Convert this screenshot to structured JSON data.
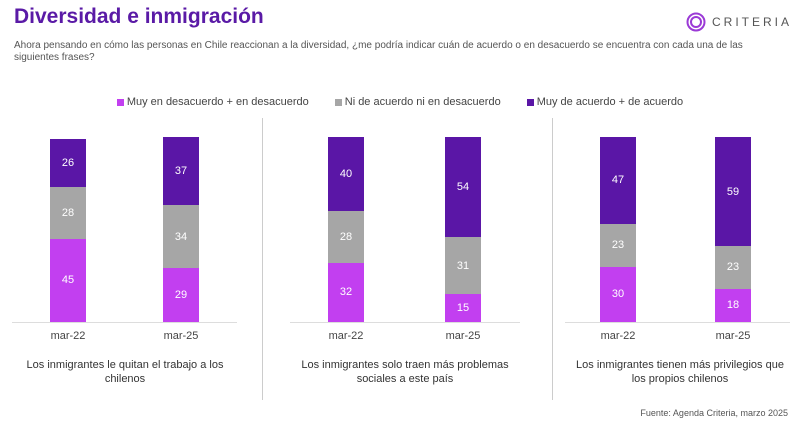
{
  "title": "Diversidad e inmigración",
  "logo": "CRITERIA",
  "subtitle": "Ahora pensando en cómo las personas en Chile reaccionan a la diversidad, ¿me podría indicar cuán de acuerdo o en desacuerdo se encuentra con cada una de las siguientes frases?",
  "source": "Fuente: Agenda Criteria, marzo 2025",
  "colors": {
    "disagree": "#c23ff0",
    "neutral": "#a6a6a6",
    "agree": "#5a16a6"
  },
  "chart_data": [
    {
      "type": "bar",
      "stacked": true,
      "caption": "Los inmigrantes le quitan el trabajo a los chilenos",
      "categories": [
        "mar-22",
        "mar-25"
      ],
      "legend": "top",
      "series": [
        {
          "name": "Muy en desacuerdo + en desacuerdo",
          "values": [
            45,
            29
          ]
        },
        {
          "name": "Ni de acuerdo ni en desacuerdo",
          "values": [
            28,
            34
          ]
        },
        {
          "name": "Muy de acuerdo + de acuerdo",
          "values": [
            26,
            37
          ]
        }
      ]
    },
    {
      "type": "bar",
      "stacked": true,
      "caption": "Los inmigrantes solo traen más problemas sociales a este país",
      "categories": [
        "mar-22",
        "mar-25"
      ],
      "series": [
        {
          "name": "Muy en desacuerdo + en desacuerdo",
          "values": [
            32,
            15
          ]
        },
        {
          "name": "Ni de acuerdo ni en desacuerdo",
          "values": [
            28,
            31
          ]
        },
        {
          "name": "Muy de acuerdo + de acuerdo",
          "values": [
            40,
            54
          ]
        }
      ]
    },
    {
      "type": "bar",
      "stacked": true,
      "caption": "Los inmigrantes tienen más privilegios que los propios chilenos",
      "categories": [
        "mar-22",
        "mar-25"
      ],
      "series": [
        {
          "name": "Muy en desacuerdo + en desacuerdo",
          "values": [
            30,
            18
          ]
        },
        {
          "name": "Ni de acuerdo ni en desacuerdo",
          "values": [
            23,
            23
          ]
        },
        {
          "name": "Muy de acuerdo + de acuerdo",
          "values": [
            47,
            59
          ]
        }
      ]
    }
  ]
}
